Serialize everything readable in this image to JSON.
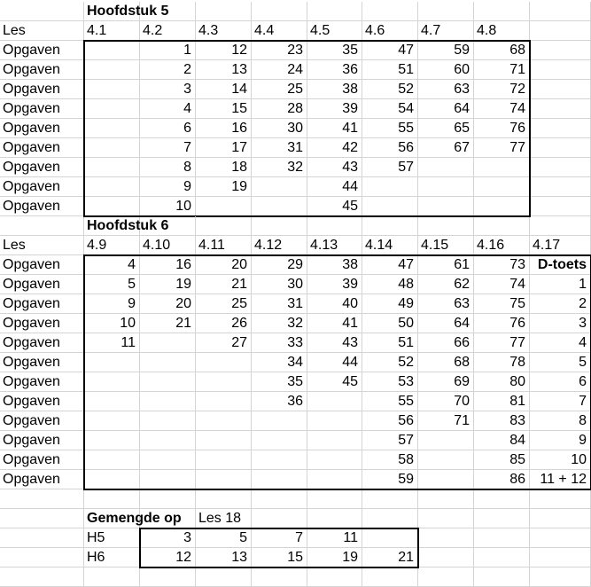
{
  "sheet": {
    "blocks": [
      {
        "title": "Hoofdstuk 5",
        "header_label": "Les",
        "lessons": [
          "4.1",
          "4.2",
          "4.3",
          "4.4",
          "4.5",
          "4.6",
          "4.7",
          "4.8"
        ],
        "row_label": "Opgaven",
        "rows": [
          [
            "",
            "1",
            "12",
            "23",
            "35",
            "47",
            "59",
            "68"
          ],
          [
            "",
            "2",
            "13",
            "24",
            "36",
            "51",
            "60",
            "71"
          ],
          [
            "",
            "3",
            "14",
            "25",
            "38",
            "52",
            "63",
            "72"
          ],
          [
            "",
            "4",
            "15",
            "28",
            "39",
            "54",
            "64",
            "74"
          ],
          [
            "",
            "6",
            "16",
            "30",
            "41",
            "55",
            "65",
            "76"
          ],
          [
            "",
            "7",
            "17",
            "31",
            "42",
            "56",
            "67",
            "77"
          ],
          [
            "",
            "8",
            "18",
            "32",
            "43",
            "57",
            "",
            ""
          ],
          [
            "",
            "9",
            "19",
            "",
            "44",
            "",
            "",
            ""
          ],
          [
            "",
            "10",
            "",
            "",
            "45",
            "",
            "",
            ""
          ]
        ]
      },
      {
        "title": "Hoofdstuk 6",
        "header_label": "Les",
        "lessons": [
          "4.9",
          "4.10",
          "4.11",
          "4.12",
          "4.13",
          "4.14",
          "4.15",
          "4.16",
          "4.17"
        ],
        "row_label": "Opgaven",
        "rows": [
          [
            "4",
            "16",
            "20",
            "29",
            "38",
            "47",
            "61",
            "73",
            "D-toets"
          ],
          [
            "5",
            "19",
            "21",
            "30",
            "39",
            "48",
            "62",
            "74",
            "1"
          ],
          [
            "9",
            "20",
            "25",
            "31",
            "40",
            "49",
            "63",
            "75",
            "2"
          ],
          [
            "10",
            "21",
            "26",
            "32",
            "41",
            "50",
            "64",
            "76",
            "3"
          ],
          [
            "11",
            "",
            "27",
            "33",
            "43",
            "51",
            "66",
            "77",
            "4"
          ],
          [
            "",
            "",
            "",
            "34",
            "44",
            "52",
            "68",
            "78",
            "5"
          ],
          [
            "",
            "",
            "",
            "35",
            "45",
            "53",
            "69",
            "80",
            "6"
          ],
          [
            "",
            "",
            "",
            "36",
            "",
            "55",
            "70",
            "81",
            "7"
          ],
          [
            "",
            "",
            "",
            "",
            "",
            "56",
            "71",
            "83",
            "8"
          ],
          [
            "",
            "",
            "",
            "",
            "",
            "57",
            "",
            "84",
            "9"
          ],
          [
            "",
            "",
            "",
            "",
            "",
            "58",
            "",
            "85",
            "10"
          ],
          [
            "",
            "",
            "",
            "",
            "",
            "59",
            "",
            "86",
            "11 + 12"
          ]
        ]
      }
    ],
    "mixed": {
      "title": "Gemengde op",
      "subtitle": "Les 18",
      "rows": [
        {
          "label": "H5",
          "values": [
            "3",
            "5",
            "7",
            "11",
            ""
          ]
        },
        {
          "label": "H6",
          "values": [
            "12",
            "13",
            "15",
            "19",
            "21"
          ]
        }
      ]
    }
  }
}
